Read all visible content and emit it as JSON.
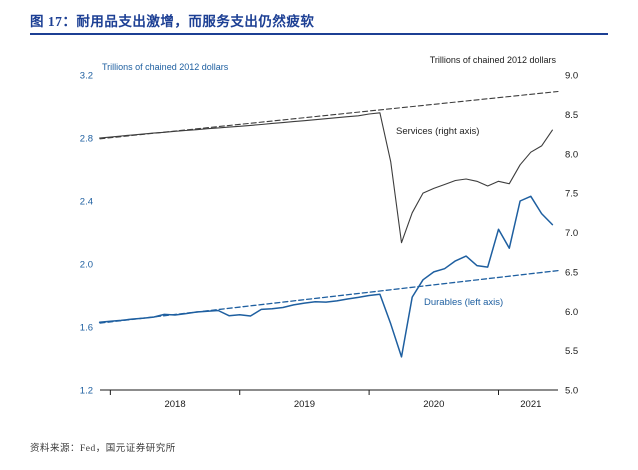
{
  "header": {
    "title": "图 17：耐用品支出激增，而服务支出仍然疲软"
  },
  "footer": {
    "source": "资料来源：Fed，国元证券研究所"
  },
  "colors": {
    "title_blue": "#1c3f94",
    "durables_blue": "#1e5fa0",
    "services_gray": "#3d3d3d"
  },
  "chart_data": {
    "type": "line",
    "title": "耐用品支出激增，而服务支出仍然疲软",
    "left_axis": {
      "title": "Trillions of chained 2012 dollars",
      "min": 1.2,
      "max": 3.2,
      "ticks": [
        1.2,
        1.6,
        2.0,
        2.4,
        2.8,
        3.2
      ],
      "color": "#1e5fa0"
    },
    "right_axis": {
      "title": "Trillions of chained 2012 dollars",
      "min": 5.0,
      "max": 9.0,
      "ticks": [
        5.0,
        5.5,
        6.0,
        6.5,
        7.0,
        7.5,
        8.0,
        8.5,
        9.0
      ],
      "color": "#1a1a1a"
    },
    "x_axis": {
      "min": 2017.92,
      "max": 2021.46,
      "x_start": 2017.9167,
      "x_step": 0.0833333,
      "tick_years": [
        2018,
        2019,
        2020,
        2021
      ],
      "labels": [
        {
          "text": "2018",
          "x": 2018.5
        },
        {
          "text": "2019",
          "x": 2019.5
        },
        {
          "text": "2020",
          "x": 2020.5
        },
        {
          "text": "2021",
          "x": 2021.25
        }
      ]
    },
    "series": [
      {
        "name": "Services",
        "axis": "right",
        "color": "#3d3d3d",
        "dash": false,
        "width": 1.1,
        "values": [
          8.2,
          8.212,
          8.225,
          8.238,
          8.25,
          8.262,
          8.272,
          8.285,
          8.295,
          8.305,
          8.318,
          8.328,
          8.338,
          8.348,
          8.36,
          8.372,
          8.385,
          8.395,
          8.408,
          8.42,
          8.432,
          8.445,
          8.458,
          8.47,
          8.482,
          8.505,
          8.52,
          7.9,
          6.87,
          7.25,
          7.5,
          7.56,
          7.61,
          7.66,
          7.68,
          7.65,
          7.59,
          7.65,
          7.62,
          7.86,
          8.02,
          8.1,
          8.3
        ]
      },
      {
        "name": "Durables",
        "axis": "left",
        "color": "#1e5fa0",
        "dash": false,
        "width": 1.5,
        "values": [
          1.63,
          1.636,
          1.642,
          1.65,
          1.655,
          1.663,
          1.68,
          1.676,
          1.685,
          1.695,
          1.7,
          1.705,
          1.672,
          1.678,
          1.67,
          1.712,
          1.716,
          1.724,
          1.74,
          1.752,
          1.76,
          1.758,
          1.766,
          1.778,
          1.788,
          1.8,
          1.808,
          1.62,
          1.41,
          1.79,
          1.9,
          1.95,
          1.97,
          2.02,
          2.05,
          1.99,
          1.98,
          2.22,
          2.1,
          2.4,
          2.43,
          2.32,
          2.25
        ]
      },
      {
        "name": "Services trend",
        "axis": "right",
        "color": "#3d3d3d",
        "dash": true,
        "width": 1.1,
        "x": [
          2017.92,
          2021.46
        ],
        "values": [
          8.19,
          8.79
        ]
      },
      {
        "name": "Durables trend",
        "axis": "left",
        "color": "#1e5fa0",
        "dash": true,
        "width": 1.3,
        "x": [
          2017.92,
          2021.46
        ],
        "values": [
          1.625,
          1.958
        ]
      }
    ],
    "annotations": [
      {
        "text": "Services (right axis)",
        "color": "#222222"
      },
      {
        "text": "Durables (left axis)",
        "color": "#1e5fa0"
      }
    ],
    "legend": "none",
    "grid": false
  }
}
